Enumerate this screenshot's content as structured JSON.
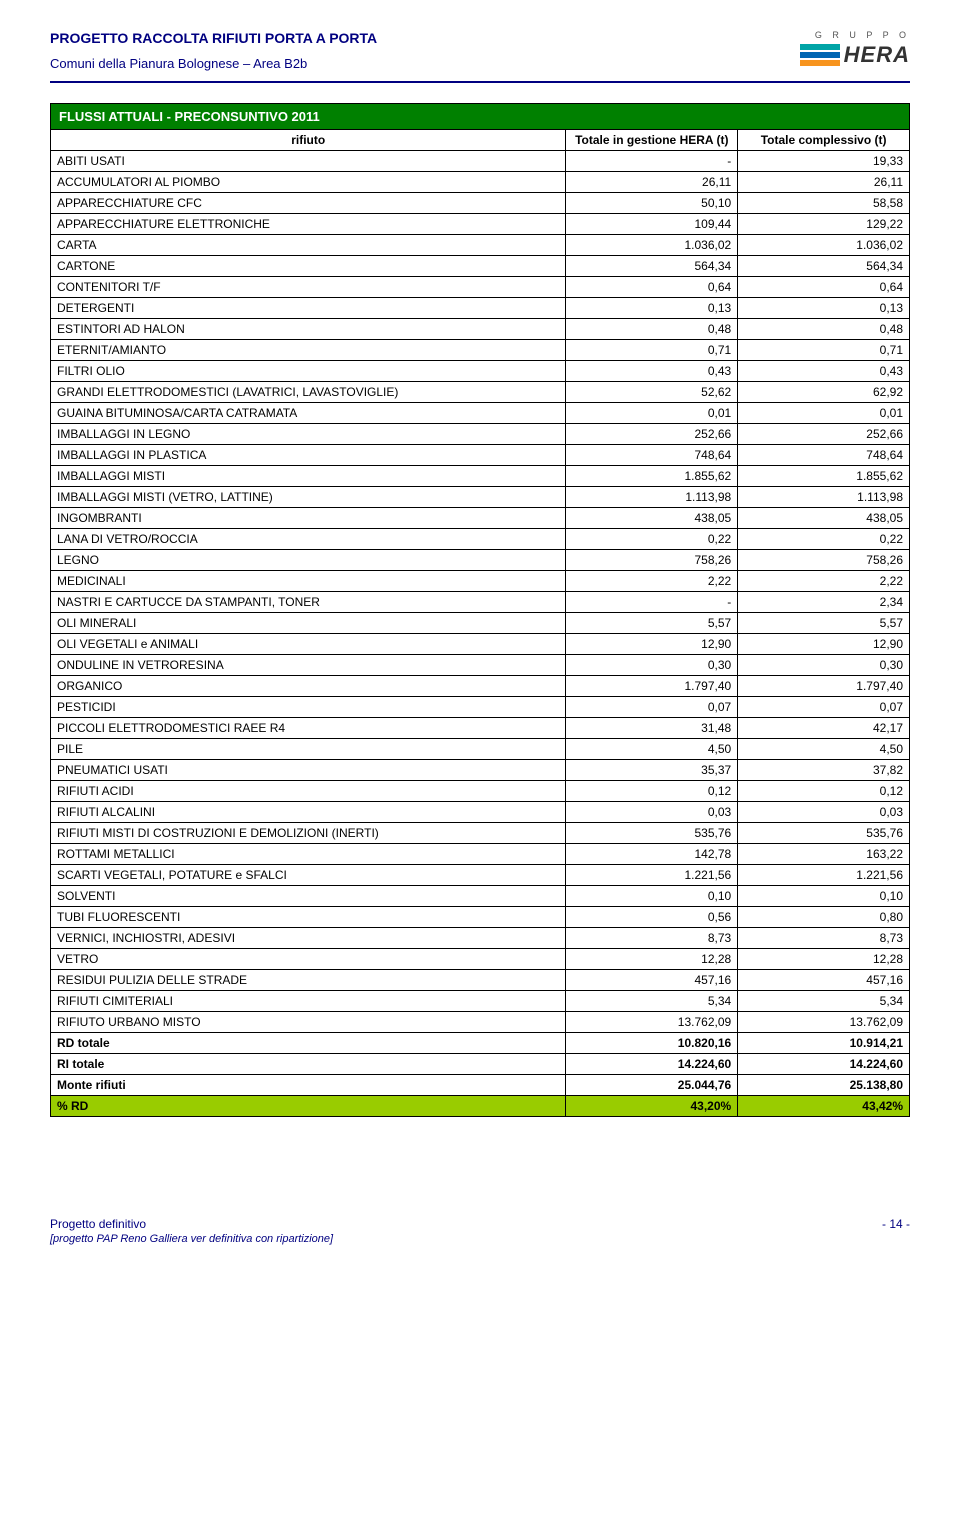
{
  "header": {
    "title": "PROGETTO RACCOLTA RIFIUTI PORTA A PORTA",
    "subtitle": "Comuni della Pianura Bolognese – Area B2b",
    "logo_group": "G R U P P O",
    "logo_name": "HERA",
    "logo_colors": [
      "#00a4a6",
      "#0066b3",
      "#f7941e"
    ]
  },
  "table": {
    "title": "FLUSSI ATTUALI - PRECONSUNTIVO 2011",
    "columns": [
      "rifiuto",
      "Totale in gestione HERA (t)",
      "Totale complessivo (t)"
    ],
    "rows": [
      [
        "ABITI USATI",
        "-",
        "19,33"
      ],
      [
        "ACCUMULATORI AL PIOMBO",
        "26,11",
        "26,11"
      ],
      [
        "APPARECCHIATURE CFC",
        "50,10",
        "58,58"
      ],
      [
        "APPARECCHIATURE ELETTRONICHE",
        "109,44",
        "129,22"
      ],
      [
        "CARTA",
        "1.036,02",
        "1.036,02"
      ],
      [
        "CARTONE",
        "564,34",
        "564,34"
      ],
      [
        "CONTENITORI T/F",
        "0,64",
        "0,64"
      ],
      [
        "DETERGENTI",
        "0,13",
        "0,13"
      ],
      [
        "ESTINTORI AD HALON",
        "0,48",
        "0,48"
      ],
      [
        "ETERNIT/AMIANTO",
        "0,71",
        "0,71"
      ],
      [
        "FILTRI OLIO",
        "0,43",
        "0,43"
      ],
      [
        "GRANDI ELETTRODOMESTICI (LAVATRICI, LAVASTOVIGLIE)",
        "52,62",
        "62,92"
      ],
      [
        "GUAINA BITUMINOSA/CARTA CATRAMATA",
        "0,01",
        "0,01"
      ],
      [
        "IMBALLAGGI IN LEGNO",
        "252,66",
        "252,66"
      ],
      [
        "IMBALLAGGI IN PLASTICA",
        "748,64",
        "748,64"
      ],
      [
        "IMBALLAGGI MISTI",
        "1.855,62",
        "1.855,62"
      ],
      [
        "IMBALLAGGI MISTI (VETRO, LATTINE)",
        "1.113,98",
        "1.113,98"
      ],
      [
        "INGOMBRANTI",
        "438,05",
        "438,05"
      ],
      [
        "LANA DI VETRO/ROCCIA",
        "0,22",
        "0,22"
      ],
      [
        "LEGNO",
        "758,26",
        "758,26"
      ],
      [
        "MEDICINALI",
        "2,22",
        "2,22"
      ],
      [
        "NASTRI E CARTUCCE DA STAMPANTI, TONER",
        "-",
        "2,34"
      ],
      [
        "OLI MINERALI",
        "5,57",
        "5,57"
      ],
      [
        "OLI VEGETALI e ANIMALI",
        "12,90",
        "12,90"
      ],
      [
        "ONDULINE IN VETRORESINA",
        "0,30",
        "0,30"
      ],
      [
        "ORGANICO",
        "1.797,40",
        "1.797,40"
      ],
      [
        "PESTICIDI",
        "0,07",
        "0,07"
      ],
      [
        "PICCOLI ELETTRODOMESTICI RAEE R4",
        "31,48",
        "42,17"
      ],
      [
        "PILE",
        "4,50",
        "4,50"
      ],
      [
        "PNEUMATICI USATI",
        "35,37",
        "37,82"
      ],
      [
        "RIFIUTI ACIDI",
        "0,12",
        "0,12"
      ],
      [
        "RIFIUTI ALCALINI",
        "0,03",
        "0,03"
      ],
      [
        "RIFIUTI MISTI DI COSTRUZIONI E DEMOLIZIONI (INERTI)",
        "535,76",
        "535,76"
      ],
      [
        "ROTTAMI METALLICI",
        "142,78",
        "163,22"
      ],
      [
        "SCARTI VEGETALI, POTATURE e SFALCI",
        "1.221,56",
        "1.221,56"
      ],
      [
        "SOLVENTI",
        "0,10",
        "0,10"
      ],
      [
        "TUBI FLUORESCENTI",
        "0,56",
        "0,80"
      ],
      [
        "VERNICI, INCHIOSTRI, ADESIVI",
        "8,73",
        "8,73"
      ],
      [
        "VETRO",
        "12,28",
        "12,28"
      ],
      [
        "RESIDUI PULIZIA DELLE STRADE",
        "457,16",
        "457,16"
      ],
      [
        "RIFIUTI CIMITERIALI",
        "5,34",
        "5,34"
      ],
      [
        "RIFIUTO URBANO MISTO",
        "13.762,09",
        "13.762,09"
      ]
    ],
    "summary": [
      {
        "label": "RD totale",
        "v1": "10.820,16",
        "v2": "10.914,21",
        "class": "bold-row"
      },
      {
        "label": "RI totale",
        "v1": "14.224,60",
        "v2": "14.224,60",
        "class": "bold-row"
      },
      {
        "label": "Monte rifiuti",
        "v1": "25.044,76",
        "v2": "25.138,80",
        "class": "bold-row"
      },
      {
        "label": "% RD",
        "v1": "43,20%",
        "v2": "43,42%",
        "class": "green-row"
      }
    ]
  },
  "footer": {
    "left": "Progetto definitivo",
    "note": "[progetto PAP Reno Galliera ver definitiva con ripartizione]",
    "page": "- 14 -"
  }
}
